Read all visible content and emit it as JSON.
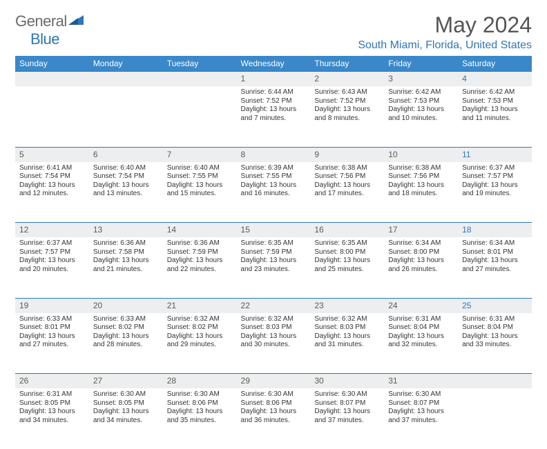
{
  "logo": {
    "general": "General",
    "blue": "Blue"
  },
  "title": {
    "month": "May 2024",
    "location": "South Miami, Florida, United States"
  },
  "colors": {
    "header_bg": "#3a88c9",
    "accent": "#2f76b6",
    "daynum_bg": "#eceeef",
    "text": "#333333"
  },
  "weekdays": [
    "Sunday",
    "Monday",
    "Tuesday",
    "Wednesday",
    "Thursday",
    "Friday",
    "Saturday"
  ],
  "weeks": [
    {
      "nums": [
        "",
        "",
        "",
        "1",
        "2",
        "3",
        "4"
      ],
      "cells": [
        null,
        null,
        null,
        {
          "sunrise": "6:44 AM",
          "sunset": "7:52 PM",
          "daylight": "13 hours and 7 minutes."
        },
        {
          "sunrise": "6:43 AM",
          "sunset": "7:52 PM",
          "daylight": "13 hours and 8 minutes."
        },
        {
          "sunrise": "6:42 AM",
          "sunset": "7:53 PM",
          "daylight": "13 hours and 10 minutes."
        },
        {
          "sunrise": "6:42 AM",
          "sunset": "7:53 PM",
          "daylight": "13 hours and 11 minutes."
        }
      ]
    },
    {
      "nums": [
        "5",
        "6",
        "7",
        "8",
        "9",
        "10",
        "11"
      ],
      "cells": [
        {
          "sunrise": "6:41 AM",
          "sunset": "7:54 PM",
          "daylight": "13 hours and 12 minutes."
        },
        {
          "sunrise": "6:40 AM",
          "sunset": "7:54 PM",
          "daylight": "13 hours and 13 minutes."
        },
        {
          "sunrise": "6:40 AM",
          "sunset": "7:55 PM",
          "daylight": "13 hours and 15 minutes."
        },
        {
          "sunrise": "6:39 AM",
          "sunset": "7:55 PM",
          "daylight": "13 hours and 16 minutes."
        },
        {
          "sunrise": "6:38 AM",
          "sunset": "7:56 PM",
          "daylight": "13 hours and 17 minutes."
        },
        {
          "sunrise": "6:38 AM",
          "sunset": "7:56 PM",
          "daylight": "13 hours and 18 minutes."
        },
        {
          "sunrise": "6:37 AM",
          "sunset": "7:57 PM",
          "daylight": "13 hours and 19 minutes."
        }
      ]
    },
    {
      "nums": [
        "12",
        "13",
        "14",
        "15",
        "16",
        "17",
        "18"
      ],
      "cells": [
        {
          "sunrise": "6:37 AM",
          "sunset": "7:57 PM",
          "daylight": "13 hours and 20 minutes."
        },
        {
          "sunrise": "6:36 AM",
          "sunset": "7:58 PM",
          "daylight": "13 hours and 21 minutes."
        },
        {
          "sunrise": "6:36 AM",
          "sunset": "7:59 PM",
          "daylight": "13 hours and 22 minutes."
        },
        {
          "sunrise": "6:35 AM",
          "sunset": "7:59 PM",
          "daylight": "13 hours and 23 minutes."
        },
        {
          "sunrise": "6:35 AM",
          "sunset": "8:00 PM",
          "daylight": "13 hours and 25 minutes."
        },
        {
          "sunrise": "6:34 AM",
          "sunset": "8:00 PM",
          "daylight": "13 hours and 26 minutes."
        },
        {
          "sunrise": "6:34 AM",
          "sunset": "8:01 PM",
          "daylight": "13 hours and 27 minutes."
        }
      ]
    },
    {
      "nums": [
        "19",
        "20",
        "21",
        "22",
        "23",
        "24",
        "25"
      ],
      "cells": [
        {
          "sunrise": "6:33 AM",
          "sunset": "8:01 PM",
          "daylight": "13 hours and 27 minutes."
        },
        {
          "sunrise": "6:33 AM",
          "sunset": "8:02 PM",
          "daylight": "13 hours and 28 minutes."
        },
        {
          "sunrise": "6:32 AM",
          "sunset": "8:02 PM",
          "daylight": "13 hours and 29 minutes."
        },
        {
          "sunrise": "6:32 AM",
          "sunset": "8:03 PM",
          "daylight": "13 hours and 30 minutes."
        },
        {
          "sunrise": "6:32 AM",
          "sunset": "8:03 PM",
          "daylight": "13 hours and 31 minutes."
        },
        {
          "sunrise": "6:31 AM",
          "sunset": "8:04 PM",
          "daylight": "13 hours and 32 minutes."
        },
        {
          "sunrise": "6:31 AM",
          "sunset": "8:04 PM",
          "daylight": "13 hours and 33 minutes."
        }
      ]
    },
    {
      "nums": [
        "26",
        "27",
        "28",
        "29",
        "30",
        "31",
        ""
      ],
      "cells": [
        {
          "sunrise": "6:31 AM",
          "sunset": "8:05 PM",
          "daylight": "13 hours and 34 minutes."
        },
        {
          "sunrise": "6:30 AM",
          "sunset": "8:05 PM",
          "daylight": "13 hours and 34 minutes."
        },
        {
          "sunrise": "6:30 AM",
          "sunset": "8:06 PM",
          "daylight": "13 hours and 35 minutes."
        },
        {
          "sunrise": "6:30 AM",
          "sunset": "8:06 PM",
          "daylight": "13 hours and 36 minutes."
        },
        {
          "sunrise": "6:30 AM",
          "sunset": "8:07 PM",
          "daylight": "13 hours and 37 minutes."
        },
        {
          "sunrise": "6:30 AM",
          "sunset": "8:07 PM",
          "daylight": "13 hours and 37 minutes."
        },
        null
      ]
    }
  ],
  "labels": {
    "sunrise": "Sunrise: ",
    "sunset": "Sunset: ",
    "daylight": "Daylight: "
  }
}
